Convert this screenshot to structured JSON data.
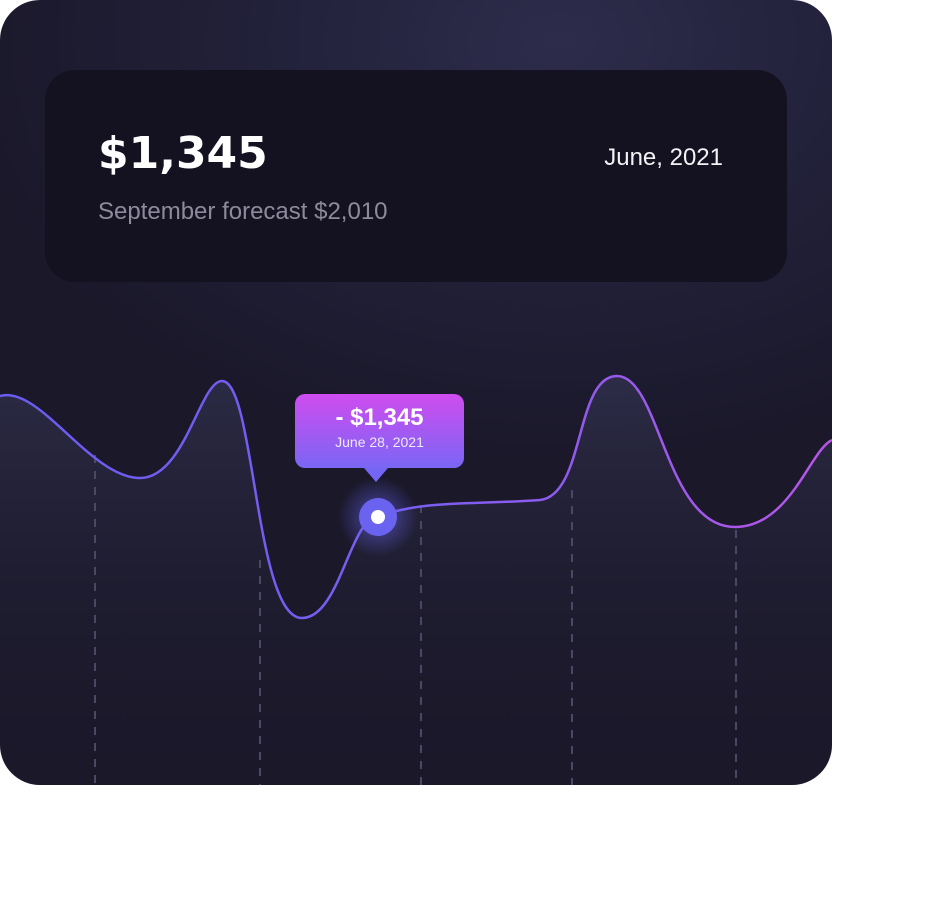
{
  "summary": {
    "amount": "$1,345",
    "forecast": "September forecast $2,010",
    "period": "June, 2021"
  },
  "tooltip": {
    "value": "- $1,345",
    "date": "June 28, 2021"
  },
  "colors": {
    "line_start": "#6a5cf0",
    "line_end": "#b855e8",
    "marker": "#6a63f0",
    "panel": "#141221"
  }
}
